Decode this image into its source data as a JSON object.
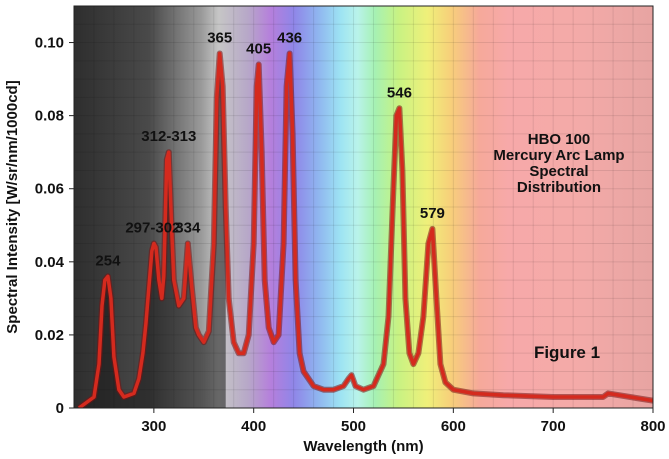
{
  "chart_data": {
    "type": "line",
    "title_lines": [
      "HBO 100",
      "Mercury Arc Lamp",
      "Spectral",
      "Distribution"
    ],
    "figure_label": "Figure 1",
    "xlabel": "Wavelength (nm)",
    "ylabel": "Spectral Intensity [W/sr/nm/1000cd]",
    "xlim": [
      220,
      800
    ],
    "ylim": [
      0,
      0.11
    ],
    "x_ticks": [
      300,
      400,
      500,
      600,
      700,
      800
    ],
    "y_ticks": [
      0,
      0.02,
      0.04,
      0.06,
      0.08,
      0.1
    ],
    "y_tick_labels": [
      "0",
      "0.02",
      "0.04",
      "0.06",
      "0.08",
      "0.10"
    ],
    "grid": true,
    "line_color": "#d42a1e",
    "series": [
      {
        "values_x": [
          225,
          240,
          245,
          248,
          251,
          254,
          257,
          260,
          265,
          270,
          280,
          285,
          289,
          292,
          295,
          298,
          300,
          302,
          305,
          308,
          310,
          313,
          315,
          318,
          320,
          325,
          330,
          334,
          338,
          342,
          345,
          350,
          355,
          360,
          363,
          366,
          369,
          372,
          375,
          380,
          385,
          390,
          395,
          400,
          403,
          405,
          408,
          411,
          415,
          420,
          425,
          430,
          433,
          436,
          439,
          442,
          446,
          450,
          460,
          470,
          480,
          490,
          495,
          498,
          502,
          510,
          520,
          530,
          535,
          540,
          543,
          546,
          549,
          552,
          556,
          560,
          565,
          570,
          575,
          579,
          583,
          587,
          592,
          600,
          620,
          650,
          700,
          750,
          755,
          800
        ],
        "values_y": [
          0.0,
          0.003,
          0.012,
          0.028,
          0.035,
          0.036,
          0.03,
          0.014,
          0.005,
          0.003,
          0.004,
          0.008,
          0.015,
          0.023,
          0.033,
          0.043,
          0.045,
          0.044,
          0.035,
          0.03,
          0.036,
          0.068,
          0.07,
          0.048,
          0.035,
          0.028,
          0.03,
          0.045,
          0.033,
          0.022,
          0.02,
          0.018,
          0.021,
          0.045,
          0.085,
          0.097,
          0.088,
          0.055,
          0.03,
          0.018,
          0.015,
          0.015,
          0.02,
          0.045,
          0.088,
          0.094,
          0.07,
          0.035,
          0.022,
          0.018,
          0.02,
          0.045,
          0.088,
          0.097,
          0.075,
          0.035,
          0.015,
          0.01,
          0.006,
          0.005,
          0.005,
          0.006,
          0.008,
          0.009,
          0.006,
          0.005,
          0.006,
          0.012,
          0.025,
          0.06,
          0.08,
          0.082,
          0.065,
          0.03,
          0.015,
          0.012,
          0.015,
          0.025,
          0.045,
          0.049,
          0.03,
          0.012,
          0.007,
          0.005,
          0.004,
          0.0035,
          0.003,
          0.003,
          0.004,
          0.002
        ]
      }
    ],
    "annotations": [
      {
        "text": "254",
        "x": 254,
        "y": 0.036
      },
      {
        "text": "297-302",
        "x": 299,
        "y": 0.045
      },
      {
        "text": "312-313",
        "x": 315,
        "y": 0.07
      },
      {
        "text": "334",
        "x": 334,
        "y": 0.045
      },
      {
        "text": "365",
        "x": 366,
        "y": 0.097
      },
      {
        "text": "405",
        "x": 405,
        "y": 0.094
      },
      {
        "text": "436",
        "x": 436,
        "y": 0.097
      },
      {
        "text": "546",
        "x": 546,
        "y": 0.082
      },
      {
        "text": "579",
        "x": 579,
        "y": 0.049
      }
    ]
  }
}
